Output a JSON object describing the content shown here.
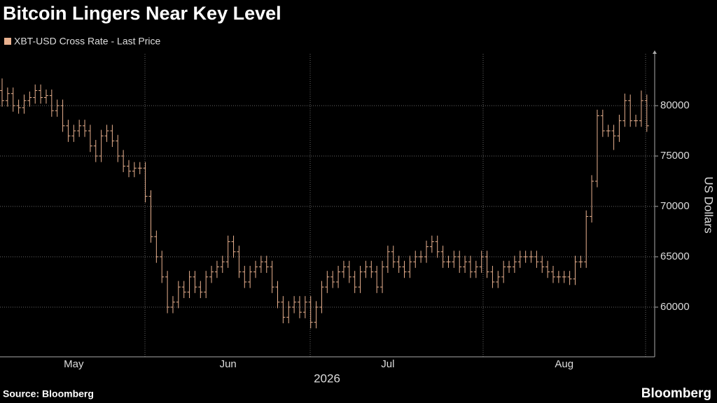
{
  "chart_data": {
    "type": "ohlc",
    "title": "Bitcoin Lingers Near Key Level",
    "xlabel": "2026",
    "ylabel": "US Dollars",
    "categories": [
      null,
      null,
      null,
      null,
      null,
      null,
      null,
      null,
      null,
      null,
      null,
      null,
      null,
      "May",
      null,
      null,
      null,
      null,
      null,
      null,
      null,
      null,
      null,
      null,
      null,
      null,
      null,
      null,
      null,
      null,
      null,
      null,
      null,
      null,
      null,
      null,
      null,
      null,
      null,
      null,
      null,
      "Jun",
      null,
      null,
      null,
      null,
      null,
      null,
      null,
      null,
      null,
      null,
      null,
      null,
      null,
      null,
      null,
      null,
      null,
      null,
      null,
      null,
      null,
      null,
      null,
      null,
      null,
      null,
      null,
      null,
      "Jul",
      null,
      null,
      null,
      null,
      null,
      null,
      null,
      null,
      null,
      null,
      null,
      null,
      null,
      null,
      null,
      null,
      null,
      null,
      null,
      null,
      null,
      null,
      null,
      null,
      null,
      null,
      null,
      null,
      null,
      null,
      null,
      "Aug",
      null,
      null,
      null,
      null,
      null,
      null,
      null,
      null,
      null,
      null,
      null,
      null,
      null,
      null,
      null
    ],
    "series": [
      {
        "name": "XBT-USD Cross Rate - Last Price",
        "color": "#e9b18f",
        "open": [
          81500,
          80500,
          81200,
          80000,
          79800,
          80500,
          80800,
          81500,
          80800,
          81000,
          79500,
          80000,
          78000,
          77000,
          77500,
          78000,
          77500,
          76000,
          75000,
          77000,
          77500,
          76500,
          75000,
          74000,
          73500,
          73800,
          73800,
          71000,
          67000,
          65000,
          63000,
          60000,
          60500,
          62000,
          61500,
          63000,
          62000,
          61500,
          63000,
          63500,
          64000,
          64500,
          66500,
          65500,
          63500,
          62500,
          63500,
          64000,
          64500,
          64000,
          62000,
          60500,
          59000,
          60000,
          60500,
          59500,
          60500,
          58500,
          60000,
          62000,
          63000,
          62500,
          63500,
          64000,
          63000,
          62000,
          63500,
          64000,
          63500,
          62000,
          64000,
          65500,
          64500,
          64000,
          63500,
          64500,
          65000,
          65000,
          66000,
          66500,
          65500,
          64500,
          64500,
          65000,
          64000,
          64500,
          63500,
          64000,
          65000,
          63500,
          62500,
          63000,
          64000,
          64000,
          64500,
          65000,
          65000,
          65000,
          64500,
          64000,
          63500,
          63000,
          63000,
          63000,
          62800,
          64500,
          64500,
          69000,
          72500,
          79000,
          77500,
          77500,
          77000,
          78500,
          80500,
          78500,
          78500,
          80500
        ],
        "high": [
          82700,
          81800,
          81800,
          80600,
          81100,
          81400,
          82100,
          82100,
          81600,
          81600,
          80600,
          80600,
          78600,
          78100,
          78600,
          78600,
          78100,
          76600,
          77600,
          78100,
          78100,
          77100,
          75600,
          74600,
          74400,
          74400,
          74400,
          71600,
          67600,
          65600,
          63600,
          61100,
          62600,
          62600,
          63600,
          63600,
          62600,
          63600,
          64100,
          64600,
          65100,
          67100,
          67100,
          66100,
          64100,
          64100,
          64600,
          65100,
          65100,
          64600,
          62600,
          61100,
          60600,
          61100,
          61100,
          61100,
          61100,
          60600,
          62600,
          63600,
          63600,
          64100,
          64600,
          64600,
          63600,
          64100,
          64600,
          64600,
          64100,
          64600,
          66100,
          66100,
          65100,
          64600,
          65100,
          65600,
          65600,
          66600,
          67100,
          67100,
          66100,
          65100,
          65600,
          65600,
          65100,
          65100,
          64600,
          65600,
          65600,
          64100,
          63600,
          64600,
          64600,
          65100,
          65600,
          65600,
          65600,
          65600,
          65100,
          64600,
          64100,
          63600,
          63600,
          63600,
          65100,
          65100,
          69600,
          73100,
          79600,
          79600,
          78100,
          78100,
          79100,
          81200,
          81100,
          79100,
          81500,
          81100
        ],
        "low": [
          79900,
          79900,
          79400,
          79200,
          79200,
          79900,
          80200,
          80200,
          80200,
          78900,
          78900,
          77400,
          76400,
          76400,
          76900,
          76900,
          75400,
          74400,
          74400,
          76400,
          75900,
          74400,
          73400,
          72900,
          72900,
          73200,
          70400,
          66400,
          64400,
          62400,
          59400,
          59400,
          59900,
          60900,
          60900,
          61400,
          60900,
          60900,
          62400,
          62900,
          63400,
          63900,
          64900,
          62900,
          61900,
          61900,
          62900,
          63400,
          63400,
          61400,
          59900,
          58400,
          58400,
          59400,
          58900,
          58900,
          57900,
          57900,
          59400,
          61400,
          61900,
          61900,
          62900,
          62400,
          61400,
          61400,
          62900,
          62900,
          61400,
          61400,
          63400,
          63900,
          63400,
          62900,
          62900,
          63900,
          64400,
          64400,
          65400,
          64900,
          63900,
          63900,
          63900,
          63400,
          63400,
          62900,
          62900,
          63400,
          62900,
          61900,
          61900,
          62400,
          63400,
          63400,
          63900,
          64400,
          64400,
          63900,
          63400,
          62900,
          62400,
          62400,
          62400,
          62200,
          62200,
          63900,
          63900,
          68400,
          71900,
          76900,
          76900,
          75600,
          76400,
          77900,
          77900,
          77900,
          77900,
          77400
        ],
        "close": [
          80500,
          81200,
          80000,
          79800,
          80500,
          80800,
          81500,
          80800,
          81000,
          79500,
          80000,
          78000,
          77000,
          77500,
          78000,
          77500,
          76000,
          75000,
          77000,
          77500,
          76500,
          75000,
          74000,
          73500,
          73800,
          73800,
          71000,
          67000,
          65000,
          63000,
          60000,
          60500,
          62000,
          61500,
          63000,
          62000,
          61500,
          63000,
          63500,
          64000,
          64500,
          66500,
          65500,
          63500,
          62500,
          63500,
          64000,
          64500,
          64000,
          62000,
          60500,
          59000,
          60000,
          60500,
          59500,
          60500,
          58500,
          60000,
          62000,
          63000,
          62500,
          63500,
          64000,
          63000,
          62000,
          63500,
          64000,
          63500,
          62000,
          64000,
          65500,
          64500,
          64000,
          63500,
          64500,
          65000,
          65000,
          66000,
          66500,
          65500,
          64500,
          64500,
          65000,
          64000,
          64500,
          63500,
          64000,
          65000,
          63500,
          62500,
          63000,
          64000,
          64000,
          64500,
          65000,
          65000,
          65000,
          64500,
          64000,
          63500,
          63000,
          63000,
          63000,
          62800,
          64500,
          64500,
          69000,
          72500,
          79000,
          77500,
          77500,
          77000,
          78500,
          80500,
          78500,
          78500,
          80500,
          78000
        ]
      }
    ],
    "ylim": [
      55070,
      85140
    ],
    "yticks": [
      60000,
      65000,
      70000,
      75000,
      80000
    ],
    "grid": true
  },
  "footer": {
    "source": "Source: Bloomberg",
    "brand": "Bloomberg"
  }
}
